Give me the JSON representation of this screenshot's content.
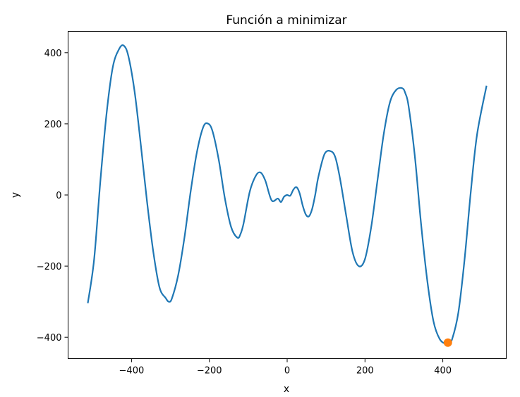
{
  "chart_data": {
    "type": "line",
    "title": "Función a minimizar",
    "xlabel": "x",
    "ylabel": "y",
    "xlim": [
      -563,
      563
    ],
    "ylim": [
      -460,
      460
    ],
    "xticks": [
      -400,
      -200,
      0,
      200,
      400
    ],
    "yticks": [
      -400,
      -200,
      0,
      200,
      400
    ],
    "xtick_labels": [
      "−400",
      "−200",
      "0",
      "200",
      "400"
    ],
    "ytick_labels": [
      "−400",
      "−200",
      "0",
      "200",
      "400"
    ],
    "grid": false,
    "series": [
      {
        "color": "#1f77b4",
        "x": [
          -512,
          -496,
          -480,
          -464,
          -448,
          -432,
          -420,
          -408,
          -392,
          -376,
          -360,
          -344,
          -328,
          -312,
          -304,
          -296,
          -280,
          -264,
          -248,
          -232,
          -216,
          -204,
          -192,
          -176,
          -160,
          -144,
          -128,
          -120,
          -112,
          -96,
          -80,
          -68,
          -56,
          -40,
          -24,
          -16,
          -8,
          0,
          8,
          16,
          24,
          32,
          40,
          48,
          56,
          64,
          72,
          80,
          96,
          112,
          124,
          136,
          152,
          168,
          184,
          200,
          216,
          232,
          248,
          264,
          280,
          296,
          304,
          312,
          328,
          344,
          360,
          376,
          392,
          408,
          416,
          424,
          440,
          456,
          472,
          488,
          512
        ],
        "y": [
          -302,
          -180,
          40,
          230,
          360,
          410,
          420,
          390,
          290,
          140,
          -20,
          -160,
          -260,
          -290,
          -300,
          -290,
          -225,
          -120,
          10,
          120,
          190,
          201,
          180,
          100,
          -10,
          -90,
          -120,
          -110,
          -80,
          10,
          55,
          63,
          40,
          -15,
          -10,
          -20,
          -5,
          0,
          -2,
          15,
          22,
          5,
          -30,
          -55,
          -60,
          -40,
          0,
          50,
          115,
          123,
          105,
          45,
          -60,
          -160,
          -200,
          -180,
          -90,
          40,
          170,
          260,
          295,
          300,
          285,
          250,
          110,
          -80,
          -240,
          -355,
          -405,
          -418,
          -413,
          -405,
          -330,
          -180,
          10,
          170,
          305
        ]
      },
      {
        "color": "#ff7f0e",
        "marker": "o",
        "x": [
          413
        ],
        "y": [
          -415
        ]
      }
    ]
  }
}
